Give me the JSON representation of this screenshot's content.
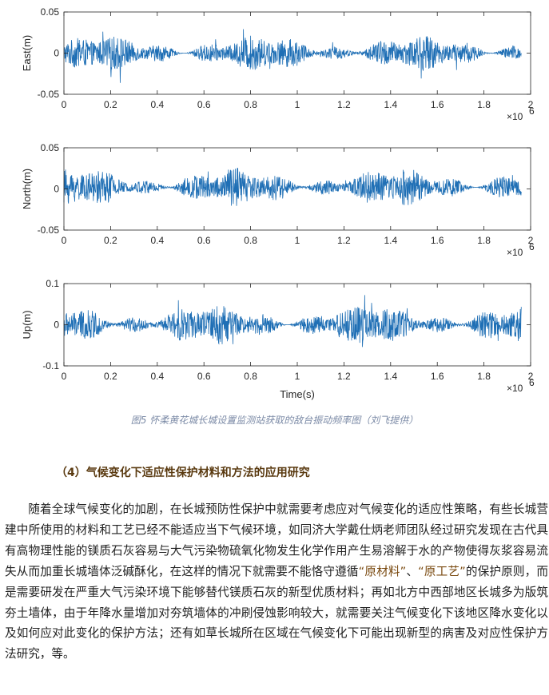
{
  "chart_data": [
    {
      "type": "line",
      "ylabel": "East(m)",
      "xlabel": "",
      "xlim": [
        0,
        2
      ],
      "ylim": [
        -0.05,
        0.05
      ],
      "x_ticks": [
        "0",
        "0.2",
        "0.4",
        "0.6",
        "0.8",
        "1",
        "1.2",
        "1.4",
        "1.6",
        "1.8",
        "2"
      ],
      "y_ticks": [
        "0.05",
        "0",
        "-0.05"
      ],
      "x_exponent": "×10",
      "x_exponent_power": "6",
      "color": "#1f6fb5",
      "series": [
        {
          "amplitude": 0.02,
          "mean": 0
        }
      ]
    },
    {
      "type": "line",
      "ylabel": "North(m)",
      "xlabel": "",
      "xlim": [
        0,
        2
      ],
      "ylim": [
        -0.05,
        0.05
      ],
      "x_ticks": [
        "0",
        "0.2",
        "0.4",
        "0.6",
        "0.8",
        "1",
        "1.2",
        "1.4",
        "1.6",
        "1.8",
        "2"
      ],
      "y_ticks": [
        "0.05",
        "0",
        "-0.05"
      ],
      "x_exponent": "×10",
      "x_exponent_power": "6",
      "color": "#1f6fb5",
      "series": [
        {
          "amplitude": 0.022,
          "mean": 0.002
        }
      ]
    },
    {
      "type": "line",
      "ylabel": "Up(m)",
      "xlabel": "Time(s)",
      "xlim": [
        0,
        2
      ],
      "ylim": [
        -0.1,
        0.1
      ],
      "x_ticks": [
        "0",
        "0.2",
        "0.4",
        "0.6",
        "0.8",
        "1",
        "1.2",
        "1.4",
        "1.6",
        "1.8",
        "2"
      ],
      "y_ticks": [
        "0.1",
        "0",
        "-0.1"
      ],
      "x_exponent": "×10",
      "x_exponent_power": "6",
      "color": "#1f6fb5",
      "series": [
        {
          "amplitude": 0.045,
          "mean": 0
        }
      ]
    }
  ],
  "caption": "图5 怀柔黄花城长城设置监测站获取的敌台振动频率图（刘飞提供）",
  "section": {
    "heading": "（4）气候变化下适应性保护材料和方法的应用研究",
    "p1": "随着全球气候变化的加剧，在长城预防性保护中就需要考虑应对气候变化的适应性策略，有些长城营建中所使用的材料和工艺已经不能适应当下气候环境，如同济大学戴仕炳老师团队经过研究发现在古代具有高物理性能的镁质石灰容易与大气污染物硫氧化物发生化学作用产生易溶解于水的产物使得灰浆容易流失从而加重长城墙体泛碱酥化，在这样的情况下就需要不能恪守遵循",
    "q1": "“原材料”",
    "sep": "、",
    "q2": "“原工艺”",
    "p2": "的保护原则，而是需要研发在严重大气污染环境下能够替代镁质石灰的新型优质材料；再如北方中西部地区长城多为版筑夯土墙体，由于年降水量增加对夯筑墙体的冲刷侵蚀影响较大，就需要关注气候变化下该地区降水变化以及如何应对此变化的保护方法；还有如草长城所在区域在气候变化下可能出现新型的病害及对应性保护方法研究，等。"
  }
}
